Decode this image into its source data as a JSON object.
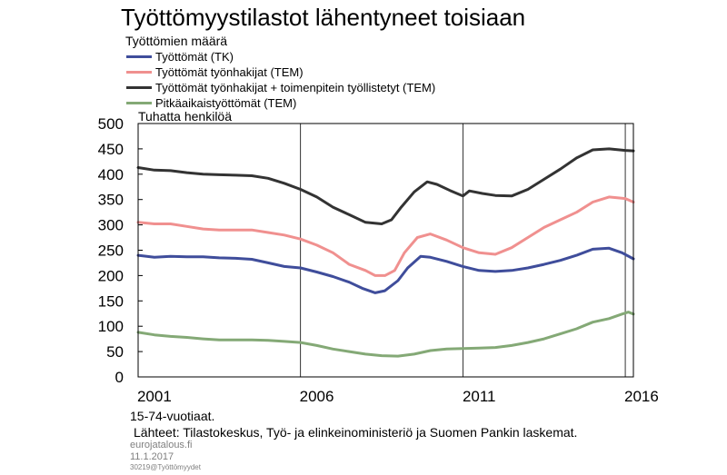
{
  "title": "Työttömyystilastot lähentyneet toisiaan",
  "subtitle": "Työttömien määrä",
  "unit_label": "Tuhatta henkilöä",
  "notes": [
    "15-74-vuotiaat.",
    "Lähteet: Tilastokeskus, Työ- ja elinkeinoministeriö ja Suomen Pankin laskemat."
  ],
  "footer": {
    "site": "eurojatalous.fi",
    "date": "11.1.2017",
    "code": "30219@Työttömyydet"
  },
  "chart_data": {
    "type": "line",
    "xlim": [
      2001.0,
      2016.25
    ],
    "ylim": [
      0,
      500
    ],
    "yticks": [
      0,
      50,
      100,
      150,
      200,
      250,
      300,
      350,
      400,
      450,
      500
    ],
    "xtick_labels": [
      "2001",
      "2006",
      "2011",
      "2016"
    ],
    "xtick_positions": [
      2001.5,
      2006.5,
      2011.5,
      2016.5
    ],
    "vgrid": [
      2006,
      2011,
      2016
    ],
    "grid": "vertical",
    "legend_position": "top-left",
    "series": [
      {
        "name": "Työttömät (TK)",
        "color": "#3f4d9b",
        "points": [
          [
            2001.0,
            240
          ],
          [
            2001.5,
            236
          ],
          [
            2002.0,
            238
          ],
          [
            2002.5,
            237
          ],
          [
            2003.0,
            237
          ],
          [
            2003.5,
            235
          ],
          [
            2004.0,
            234
          ],
          [
            2004.5,
            232
          ],
          [
            2005.0,
            225
          ],
          [
            2005.5,
            218
          ],
          [
            2006.0,
            215
          ],
          [
            2006.5,
            207
          ],
          [
            2007.0,
            198
          ],
          [
            2007.5,
            187
          ],
          [
            2007.9,
            175
          ],
          [
            2008.3,
            166
          ],
          [
            2008.6,
            170
          ],
          [
            2009.0,
            190
          ],
          [
            2009.3,
            215
          ],
          [
            2009.7,
            238
          ],
          [
            2010.0,
            236
          ],
          [
            2010.5,
            228
          ],
          [
            2011.0,
            218
          ],
          [
            2011.5,
            210
          ],
          [
            2012.0,
            208
          ],
          [
            2012.5,
            210
          ],
          [
            2013.0,
            215
          ],
          [
            2013.5,
            222
          ],
          [
            2014.0,
            230
          ],
          [
            2014.5,
            240
          ],
          [
            2015.0,
            252
          ],
          [
            2015.5,
            254
          ],
          [
            2015.9,
            245
          ],
          [
            2016.25,
            233
          ]
        ]
      },
      {
        "name": "Työttömät työnhakijat (TEM)",
        "color": "#f0908f",
        "points": [
          [
            2001.0,
            305
          ],
          [
            2001.5,
            302
          ],
          [
            2002.0,
            302
          ],
          [
            2002.5,
            297
          ],
          [
            2003.0,
            292
          ],
          [
            2003.5,
            290
          ],
          [
            2004.0,
            290
          ],
          [
            2004.5,
            290
          ],
          [
            2005.0,
            285
          ],
          [
            2005.5,
            280
          ],
          [
            2006.0,
            272
          ],
          [
            2006.5,
            260
          ],
          [
            2007.0,
            245
          ],
          [
            2007.5,
            222
          ],
          [
            2008.0,
            210
          ],
          [
            2008.3,
            200
          ],
          [
            2008.6,
            200
          ],
          [
            2008.9,
            210
          ],
          [
            2009.2,
            245
          ],
          [
            2009.6,
            275
          ],
          [
            2010.0,
            282
          ],
          [
            2010.5,
            270
          ],
          [
            2011.0,
            255
          ],
          [
            2011.5,
            245
          ],
          [
            2012.0,
            242
          ],
          [
            2012.5,
            255
          ],
          [
            2013.0,
            275
          ],
          [
            2013.5,
            295
          ],
          [
            2014.0,
            310
          ],
          [
            2014.5,
            325
          ],
          [
            2015.0,
            345
          ],
          [
            2015.5,
            355
          ],
          [
            2016.0,
            352
          ],
          [
            2016.25,
            345
          ]
        ]
      },
      {
        "name": "Työttömät työnhakijat + toimenpitein työllistetyt (TEM)",
        "color": "#333333",
        "points": [
          [
            2001.0,
            413
          ],
          [
            2001.5,
            408
          ],
          [
            2002.0,
            407
          ],
          [
            2002.5,
            403
          ],
          [
            2003.0,
            400
          ],
          [
            2003.5,
            399
          ],
          [
            2004.0,
            398
          ],
          [
            2004.5,
            397
          ],
          [
            2005.0,
            392
          ],
          [
            2005.5,
            382
          ],
          [
            2006.0,
            370
          ],
          [
            2006.5,
            355
          ],
          [
            2007.0,
            335
          ],
          [
            2007.5,
            320
          ],
          [
            2008.0,
            305
          ],
          [
            2008.5,
            302
          ],
          [
            2008.8,
            310
          ],
          [
            2009.1,
            335
          ],
          [
            2009.5,
            365
          ],
          [
            2009.9,
            385
          ],
          [
            2010.2,
            380
          ],
          [
            2010.6,
            368
          ],
          [
            2011.0,
            357
          ],
          [
            2011.2,
            367
          ],
          [
            2011.6,
            362
          ],
          [
            2012.0,
            358
          ],
          [
            2012.5,
            357
          ],
          [
            2013.0,
            370
          ],
          [
            2013.5,
            390
          ],
          [
            2014.0,
            410
          ],
          [
            2014.5,
            432
          ],
          [
            2015.0,
            448
          ],
          [
            2015.5,
            450
          ],
          [
            2016.0,
            447
          ],
          [
            2016.25,
            446
          ]
        ]
      },
      {
        "name": "Pitkäaikaistyöttömät (TEM)",
        "color": "#84a976",
        "points": [
          [
            2001.0,
            88
          ],
          [
            2001.5,
            83
          ],
          [
            2002.0,
            80
          ],
          [
            2002.5,
            78
          ],
          [
            2003.0,
            75
          ],
          [
            2003.5,
            73
          ],
          [
            2004.0,
            73
          ],
          [
            2004.5,
            73
          ],
          [
            2005.0,
            72
          ],
          [
            2005.5,
            70
          ],
          [
            2006.0,
            68
          ],
          [
            2006.5,
            62
          ],
          [
            2007.0,
            55
          ],
          [
            2007.5,
            50
          ],
          [
            2008.0,
            45
          ],
          [
            2008.5,
            42
          ],
          [
            2009.0,
            41
          ],
          [
            2009.5,
            45
          ],
          [
            2010.0,
            52
          ],
          [
            2010.5,
            55
          ],
          [
            2011.0,
            56
          ],
          [
            2011.5,
            57
          ],
          [
            2012.0,
            58
          ],
          [
            2012.5,
            62
          ],
          [
            2013.0,
            68
          ],
          [
            2013.5,
            75
          ],
          [
            2014.0,
            85
          ],
          [
            2014.5,
            95
          ],
          [
            2015.0,
            108
          ],
          [
            2015.5,
            115
          ],
          [
            2015.9,
            124
          ],
          [
            2016.1,
            128
          ],
          [
            2016.25,
            124
          ]
        ]
      }
    ]
  }
}
